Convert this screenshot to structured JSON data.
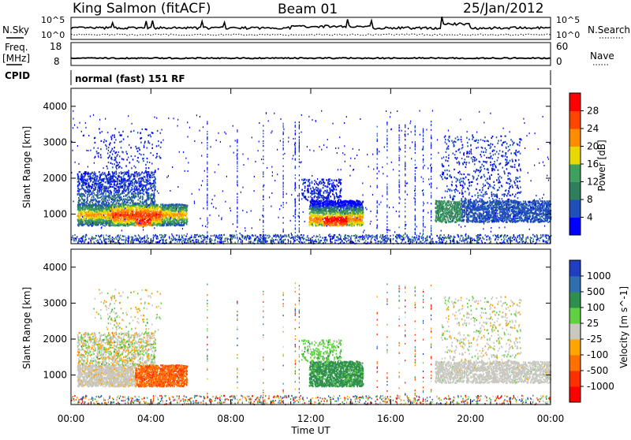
{
  "header": {
    "station": "King Salmon (fitACF)",
    "beam": "Beam 01",
    "date": "25/Jan/2012"
  },
  "strip_panels": {
    "nsky_label": "N.Sky",
    "nsearch_label": "N.Search",
    "nsky_ticks": [
      "10^5",
      "10^0"
    ],
    "nsearch_ticks": [
      "10^5",
      "10^0"
    ],
    "freq_label_line1": "Freq.",
    "freq_label_line2": "[MHz]",
    "freq_ticks": [
      "18",
      "8"
    ],
    "nave_label": "Nave",
    "nave_ticks": [
      "60",
      "0"
    ],
    "cpid_label": "CPID",
    "cpid_text": "normal (fast) 151 RF"
  },
  "chart_data": [
    {
      "type": "heatmap",
      "title": "",
      "quantity": "Power",
      "ylabel": "Slant Range [km]",
      "xlabel": "Time UT",
      "xlim": [
        0,
        24
      ],
      "ylim": [
        180,
        4500
      ],
      "yticks": [
        "1000",
        "2000",
        "3000",
        "4000"
      ],
      "colorbar_label": "Power [dB]",
      "colorbar_ticks": [
        "4",
        "8",
        "12",
        "16",
        "20",
        "24",
        "28"
      ],
      "colorbar_colors": [
        "#0000ff",
        "#1f4fb8",
        "#2f7f5f",
        "#3fa060",
        "#e6d800",
        "#ff8c00",
        "#ff4500",
        "#ff0000"
      ],
      "features": [
        {
          "t_start": 0.3,
          "t_end": 5.8,
          "range_center": 1000,
          "note": "strong echo band"
        },
        {
          "t_start": 11.9,
          "t_end": 14.6,
          "range_center": 900,
          "note": "echo patch"
        },
        {
          "t_start": 18.2,
          "t_end": 24.0,
          "range_center": 1100,
          "note": "echo band"
        }
      ]
    },
    {
      "type": "heatmap",
      "title": "",
      "quantity": "Velocity",
      "ylabel": "Slant Range [km]",
      "xlabel": "Time UT",
      "xlim": [
        0,
        24
      ],
      "ylim": [
        180,
        4500
      ],
      "yticks": [
        "1000",
        "2000",
        "3000",
        "4000"
      ],
      "colorbar_label": "Velocity [m s^-1]",
      "colorbar_ticks": [
        "1000",
        "500",
        "100",
        "25",
        "-25",
        "-100",
        "-500",
        "-1000"
      ],
      "colorbar_colors": [
        "#1f3fc0",
        "#2f6fb0",
        "#2f8f4f",
        "#5fd040",
        "#c8c8c0",
        "#ffa500",
        "#ff7000",
        "#ff3000",
        "#ff0000"
      ],
      "xticks": [
        "00:00",
        "04:00",
        "08:00",
        "12:00",
        "16:00",
        "20:00",
        "00:00"
      ]
    }
  ],
  "xaxis": {
    "ticks": [
      "00:00",
      "04:00",
      "08:00",
      "12:00",
      "16:00",
      "20:00",
      "00:00"
    ],
    "label": "Time UT"
  }
}
